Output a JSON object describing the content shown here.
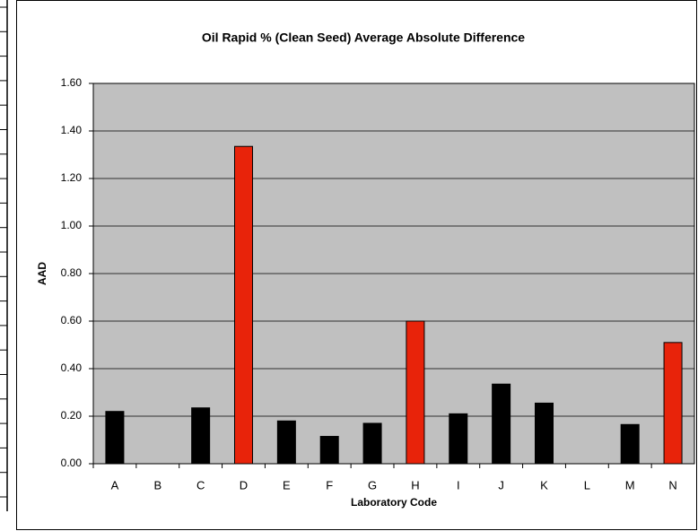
{
  "chart_data": {
    "type": "bar",
    "title": "Oil Rapid % (Clean Seed) Average Absolute Difference",
    "x_label": "Laboratory Code",
    "y_label": "AAD",
    "categories": [
      "A",
      "B",
      "C",
      "D",
      "E",
      "F",
      "G",
      "H",
      "I",
      "J",
      "K",
      "L",
      "M",
      "N"
    ],
    "values": [
      0.22,
      null,
      0.235,
      1.335,
      0.18,
      0.115,
      0.17,
      0.6,
      0.21,
      0.335,
      0.255,
      null,
      0.165,
      0.51
    ],
    "colors": [
      "#000000",
      "#000000",
      "#000000",
      "#e8230a",
      "#000000",
      "#000000",
      "#000000",
      "#e8230a",
      "#000000",
      "#000000",
      "#000000",
      "#000000",
      "#000000",
      "#e8230a"
    ],
    "ylim": [
      0,
      1.6
    ],
    "yticks": [
      {
        "value": 0,
        "label": "0.00"
      },
      {
        "value": 0.2,
        "label": "0.20"
      },
      {
        "value": 0.4,
        "label": "0.40"
      },
      {
        "value": 0.6,
        "label": "0.60"
      },
      {
        "value": 0.8,
        "label": "0.80"
      },
      {
        "value": 1.0,
        "label": "1.00"
      },
      {
        "value": 1.2,
        "label": "1.20"
      },
      {
        "value": 1.4,
        "label": "1.40"
      },
      {
        "value": 1.6,
        "label": "1.60"
      }
    ],
    "grid": true,
    "plot_background": "#c0c0c0"
  }
}
